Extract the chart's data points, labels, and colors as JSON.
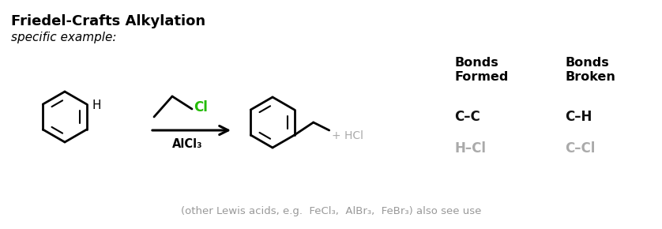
{
  "title": "Friedel-Crafts Alkylation",
  "subtitle": "specific example:",
  "background_color": "#ffffff",
  "title_fontsize": 13,
  "subtitle_fontsize": 11,
  "bonds_formed_header": "Bonds\nFormed",
  "bonds_broken_header": "Bonds\nBroken",
  "bonds_formed": [
    "C–C",
    "H–Cl"
  ],
  "bonds_broken": [
    "C–H",
    "C–Cl"
  ],
  "bonds_formed_colors": [
    "#111111",
    "#aaaaaa"
  ],
  "bonds_broken_colors": [
    "#111111",
    "#aaaaaa"
  ],
  "alcl3_label": "AlCl₃",
  "hcl_label": "+ HCl",
  "footer": "(other Lewis acids, e.g.  FeCl₃,  AlBr₃,  FeBr₃) also see use",
  "footer_color": "#999999",
  "cl_color": "#22bb00",
  "arrow_color": "#000000"
}
